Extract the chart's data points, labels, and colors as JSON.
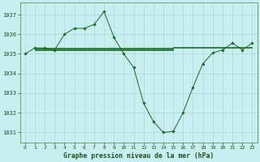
{
  "title": "Graphe pression niveau de la mer (hPa)",
  "bg_color": "#c8eef0",
  "grid_color": "#afd8d8",
  "line_color": "#1a6b2a",
  "marker_color": "#1a6b2a",
  "xlim": [
    -0.5,
    23.5
  ],
  "ylim": [
    1030.5,
    1037.6
  ],
  "yticks": [
    1031,
    1032,
    1033,
    1034,
    1035,
    1036,
    1037
  ],
  "xticks": [
    0,
    1,
    2,
    3,
    4,
    5,
    6,
    7,
    8,
    9,
    10,
    11,
    12,
    13,
    14,
    15,
    16,
    17,
    18,
    19,
    20,
    21,
    22,
    23
  ],
  "main_series_x": [
    0,
    1,
    2,
    3,
    4,
    5,
    6,
    7,
    8,
    9,
    10,
    11,
    12,
    13,
    14,
    15,
    16,
    17,
    18,
    19,
    20,
    21,
    22,
    23
  ],
  "main_series_y": [
    1035.0,
    1035.3,
    1035.3,
    1035.2,
    1036.0,
    1036.3,
    1036.3,
    1036.5,
    1037.15,
    1035.85,
    1035.0,
    1034.3,
    1032.5,
    1031.55,
    1031.0,
    1031.05,
    1032.0,
    1033.3,
    1034.5,
    1035.05,
    1035.2,
    1035.55,
    1035.2,
    1035.55
  ],
  "flat_lines": [
    {
      "x_start": 1,
      "x_end": 23,
      "y": 1035.32
    },
    {
      "x_start": 1,
      "x_end": 15,
      "y": 1035.28
    },
    {
      "x_start": 1,
      "x_end": 15,
      "y": 1035.24
    },
    {
      "x_start": 1,
      "x_end": 15,
      "y": 1035.2
    },
    {
      "x_start": 15,
      "x_end": 23,
      "y": 1035.36
    }
  ]
}
